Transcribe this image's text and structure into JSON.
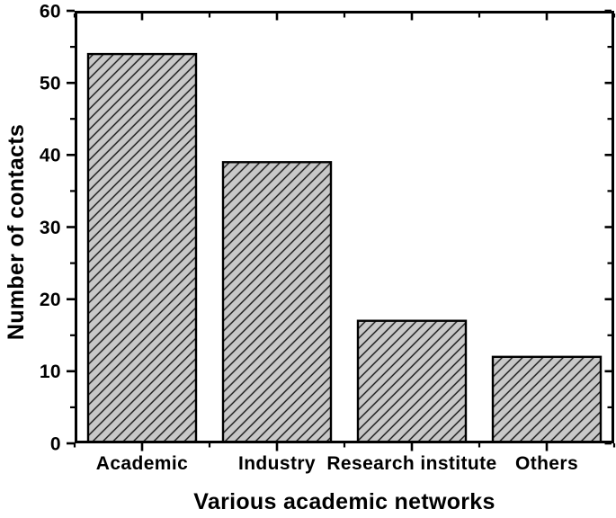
{
  "chart_data": {
    "type": "bar",
    "title": "",
    "categories": [
      "Academic",
      "Industry",
      "Research institute",
      "Others"
    ],
    "values": [
      54,
      39,
      17,
      12
    ],
    "xlabel": "Various academic networks",
    "ylabel": "Number of contacts",
    "ylim": [
      0,
      60
    ],
    "y_major_ticks": [
      0,
      10,
      20,
      30,
      40,
      50,
      60
    ],
    "y_tick_labels": [
      "0",
      "10",
      "20",
      "30",
      "40",
      "50",
      "60"
    ],
    "y_minor_step": 5,
    "grid": false,
    "legend": "none",
    "axes_style": "box-with-mirrored-ticks",
    "bar_fill": "#c8c8c8",
    "bar_hatch": "diagonal-forward",
    "hatch_color": "#141414",
    "bar_border_color": "#000000",
    "axis_color": "#000000",
    "text_color": "#000000",
    "background_color": "#ffffff"
  }
}
